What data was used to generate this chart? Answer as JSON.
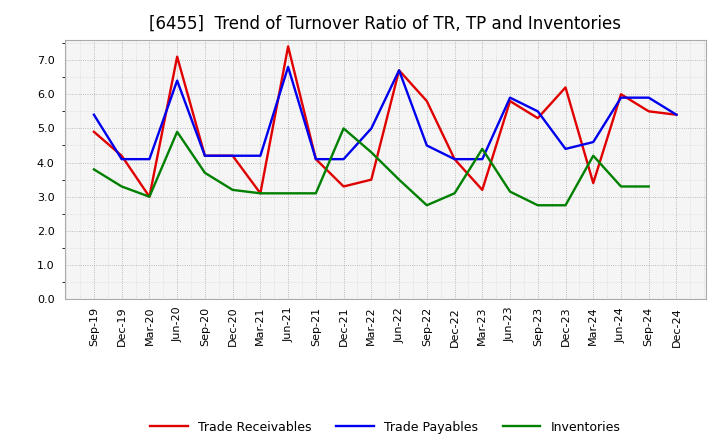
{
  "title": "[6455]  Trend of Turnover Ratio of TR, TP and Inventories",
  "x_labels": [
    "Sep-19",
    "Dec-19",
    "Mar-20",
    "Jun-20",
    "Sep-20",
    "Dec-20",
    "Mar-21",
    "Jun-21",
    "Sep-21",
    "Dec-21",
    "Mar-22",
    "Jun-22",
    "Sep-22",
    "Dec-22",
    "Mar-23",
    "Jun-23",
    "Sep-23",
    "Dec-23",
    "Mar-24",
    "Jun-24",
    "Sep-24",
    "Dec-24"
  ],
  "trade_receivables": [
    4.9,
    4.2,
    3.0,
    7.1,
    4.2,
    4.2,
    3.1,
    7.4,
    4.1,
    3.3,
    3.5,
    6.7,
    5.8,
    4.1,
    3.2,
    5.8,
    5.3,
    6.2,
    3.4,
    6.0,
    5.5,
    5.4
  ],
  "trade_payables": [
    5.4,
    4.1,
    4.1,
    6.4,
    4.2,
    4.2,
    4.2,
    6.8,
    4.1,
    4.1,
    5.0,
    6.7,
    4.5,
    4.1,
    4.1,
    5.9,
    5.5,
    4.4,
    4.6,
    5.9,
    5.9,
    5.4
  ],
  "inventories": [
    3.8,
    3.3,
    3.0,
    4.9,
    3.7,
    3.2,
    3.1,
    3.1,
    3.1,
    5.0,
    4.3,
    3.5,
    2.75,
    3.1,
    4.4,
    3.15,
    2.75,
    2.75,
    4.2,
    3.3,
    3.3,
    null
  ],
  "tr_color": "#e00000",
  "tp_color": "#0000ee",
  "inv_color": "#008000",
  "tr_label": "Trade Receivables",
  "tp_label": "Trade Payables",
  "inv_label": "Inventories",
  "ylim": [
    0.0,
    7.6
  ],
  "yticks": [
    0.0,
    1.0,
    2.0,
    3.0,
    4.0,
    5.0,
    6.0,
    7.0
  ],
  "plot_bg_color": "#f5f5f5",
  "figure_bg_color": "#ffffff",
  "grid_color": "#888888",
  "title_fontsize": 12,
  "legend_fontsize": 9,
  "tick_fontsize": 8,
  "linewidth": 1.7
}
